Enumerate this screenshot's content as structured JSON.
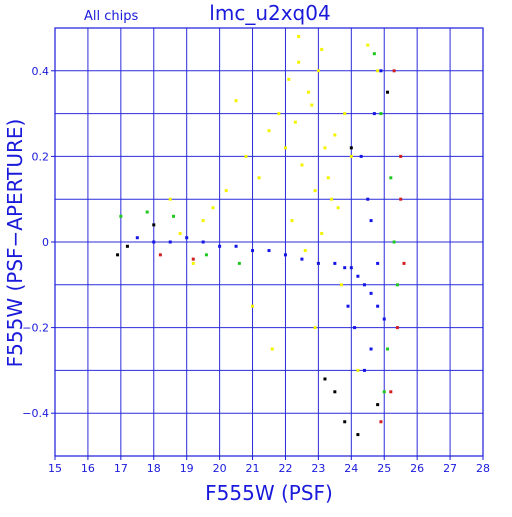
{
  "chart_data": {
    "type": "scatter",
    "title": "lmc_u2xq04",
    "subtitle": "All chips",
    "xlabel": "F555W (PSF)",
    "ylabel": "F555W (PSF−APERTURE)",
    "xlim": [
      15,
      28
    ],
    "ylim": [
      -0.5,
      0.5
    ],
    "x_ticks": [
      15,
      16,
      17,
      18,
      19,
      20,
      21,
      22,
      23,
      24,
      25,
      26,
      27,
      28
    ],
    "x_tick_labels": [
      "15",
      "16",
      "17",
      "18",
      "19",
      "20",
      "21",
      "22",
      "23",
      "24",
      "25",
      "26",
      "27",
      "28"
    ],
    "y_ticks": [
      -0.4,
      -0.2,
      0,
      0.2,
      0.4
    ],
    "y_tick_labels": [
      "−0.4",
      "−0.2",
      "0",
      "0.2",
      "0.4"
    ],
    "grid": true,
    "legend": "none",
    "colors": {
      "axes": "#1a1adb",
      "grid": "#2b2bdc",
      "yellow_points": "#f4f400",
      "blue_points": "#1414e6",
      "green_points": "#1ec81e",
      "red_points": "#d21e1e",
      "black_points": "#000000"
    },
    "series": [
      {
        "color": "#f4f400",
        "x": [
          22.3,
          22.8,
          23.2,
          23.0,
          22.5,
          23.5,
          22.9,
          23.1,
          22.7,
          23.3,
          21.8,
          22.0,
          23.8,
          24.0,
          22.2,
          23.6,
          22.6,
          23.4,
          22.4,
          22.1,
          21.5,
          21.2,
          20.8,
          20.5,
          20.2,
          19.8,
          19.5,
          19.2,
          18.8,
          18.5,
          21.0,
          21.6,
          22.9,
          23.7,
          24.2,
          23.0,
          22.4,
          24.5,
          24.8,
          23.1
        ],
        "y": [
          0.28,
          0.32,
          0.22,
          0.4,
          0.18,
          0.25,
          0.12,
          0.45,
          0.35,
          0.15,
          0.3,
          0.22,
          0.3,
          0.2,
          0.05,
          0.08,
          -0.02,
          0.1,
          0.42,
          0.38,
          0.26,
          0.15,
          0.2,
          0.33,
          0.12,
          0.08,
          0.05,
          -0.05,
          0.02,
          0.1,
          -0.15,
          -0.25,
          -0.2,
          -0.1,
          -0.3,
          -0.05,
          0.48,
          0.46,
          0.4,
          0.02
        ]
      },
      {
        "color": "#1414e6",
        "x": [
          17.5,
          18.0,
          18.5,
          19.0,
          19.5,
          20.0,
          20.5,
          21.0,
          21.5,
          22.0,
          22.5,
          23.0,
          23.5,
          23.8,
          24.0,
          24.2,
          24.4,
          24.6,
          24.8,
          25.0,
          24.5,
          24.3,
          24.7,
          24.9,
          24.6,
          24.4,
          24.1,
          23.9,
          24.6,
          24.8
        ],
        "y": [
          0.01,
          0.0,
          0.0,
          0.01,
          0.0,
          -0.01,
          -0.01,
          -0.02,
          -0.02,
          -0.03,
          -0.04,
          -0.05,
          -0.05,
          -0.06,
          -0.06,
          -0.08,
          -0.1,
          -0.12,
          -0.15,
          -0.18,
          0.1,
          0.2,
          0.3,
          0.4,
          -0.25,
          -0.3,
          -0.2,
          -0.15,
          0.05,
          -0.05
        ]
      },
      {
        "color": "#1ec81e",
        "x": [
          17.0,
          17.8,
          18.6,
          19.6,
          20.6,
          24.9,
          25.2,
          25.4,
          25.1,
          24.7,
          25.3,
          25.0
        ],
        "y": [
          0.06,
          0.07,
          0.06,
          -0.03,
          -0.05,
          0.3,
          0.15,
          -0.1,
          -0.25,
          0.44,
          0.0,
          -0.35
        ]
      },
      {
        "color": "#d21e1e",
        "x": [
          18.2,
          19.2,
          25.3,
          25.5,
          25.6,
          25.4,
          25.2,
          25.5,
          24.9
        ],
        "y": [
          -0.03,
          -0.04,
          0.4,
          0.2,
          -0.05,
          -0.2,
          -0.35,
          0.1,
          -0.42
        ]
      },
      {
        "color": "#000000",
        "x": [
          16.9,
          17.2,
          18.0,
          23.5,
          23.8,
          24.2,
          24.8,
          25.1,
          24.0,
          23.2
        ],
        "y": [
          -0.03,
          -0.01,
          0.04,
          -0.35,
          -0.42,
          -0.45,
          -0.38,
          0.35,
          0.22,
          -0.32
        ]
      }
    ]
  }
}
